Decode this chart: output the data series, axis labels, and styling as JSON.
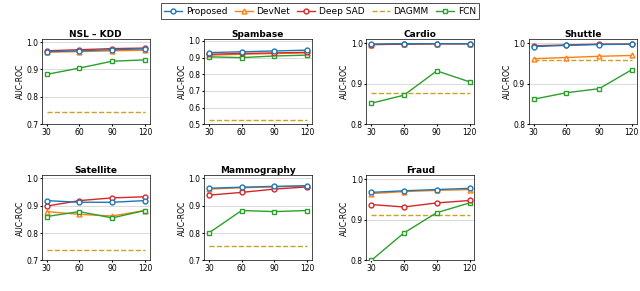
{
  "x": [
    30,
    60,
    90,
    120
  ],
  "datasets": {
    "NSL-KDD": {
      "Proposed": [
        0.965,
        0.968,
        0.972,
        0.975
      ],
      "DevNet": [
        0.963,
        0.965,
        0.968,
        0.97
      ],
      "Deep SAD": [
        0.968,
        0.972,
        0.976,
        0.978
      ],
      "DAGMM": [
        0.745,
        0.745,
        0.745,
        0.745
      ],
      "FCN": [
        0.882,
        0.905,
        0.93,
        0.935
      ]
    },
    "Spambase": {
      "Proposed": [
        0.93,
        0.935,
        0.94,
        0.945
      ],
      "DevNet": [
        0.915,
        0.92,
        0.925,
        0.928
      ],
      "Deep SAD": [
        0.92,
        0.925,
        0.928,
        0.932
      ],
      "DAGMM": [
        0.525,
        0.525,
        0.525,
        0.525
      ],
      "FCN": [
        0.905,
        0.9,
        0.91,
        0.915
      ]
    },
    "Cardio": {
      "Proposed": [
        0.998,
        0.999,
        0.999,
        0.999
      ],
      "DevNet": [
        0.997,
        0.998,
        0.999,
        0.999
      ],
      "Deep SAD": [
        0.997,
        0.998,
        0.999,
        0.999
      ],
      "DAGMM": [
        0.878,
        0.878,
        0.878,
        0.878
      ],
      "FCN": [
        0.852,
        0.872,
        0.932,
        0.905
      ]
    },
    "Shuttle": {
      "Proposed": [
        0.992,
        0.995,
        0.997,
        0.998
      ],
      "DevNet": [
        0.962,
        0.965,
        0.968,
        0.97
      ],
      "Deep SAD": [
        0.994,
        0.996,
        0.998,
        0.998
      ],
      "DAGMM": [
        0.958,
        0.958,
        0.958,
        0.958
      ],
      "FCN": [
        0.862,
        0.878,
        0.888,
        0.935
      ]
    },
    "Satellite": {
      "Proposed": [
        0.918,
        0.912,
        0.912,
        0.918
      ],
      "DevNet": [
        0.878,
        0.868,
        0.862,
        0.882
      ],
      "Deep SAD": [
        0.898,
        0.918,
        0.928,
        0.932
      ],
      "DAGMM": [
        0.738,
        0.738,
        0.738,
        0.738
      ],
      "FCN": [
        0.86,
        0.878,
        0.855,
        0.882
      ]
    },
    "Mammography": {
      "Proposed": [
        0.963,
        0.967,
        0.97,
        0.972
      ],
      "DevNet": [
        0.96,
        0.965,
        0.968,
        0.972
      ],
      "Deep SAD": [
        0.938,
        0.948,
        0.96,
        0.968
      ],
      "DAGMM": [
        0.752,
        0.752,
        0.752,
        0.752
      ],
      "FCN": [
        0.8,
        0.882,
        0.878,
        0.882
      ]
    },
    "Fraud": {
      "Proposed": [
        0.968,
        0.972,
        0.975,
        0.978
      ],
      "DevNet": [
        0.965,
        0.97,
        0.973,
        0.975
      ],
      "Deep SAD": [
        0.938,
        0.932,
        0.942,
        0.948
      ],
      "DAGMM": [
        0.912,
        0.912,
        0.912,
        0.912
      ],
      "FCN": [
        0.8,
        0.868,
        0.918,
        0.942
      ]
    }
  },
  "colors": {
    "Proposed": "#1f77b4",
    "DevNet": "#ff7f0e",
    "Deep SAD": "#d62728",
    "DAGMM": "#c9a227",
    "FCN": "#2ca02c"
  },
  "linestyles": {
    "Proposed": "-",
    "DevNet": "-",
    "Deep SAD": "-",
    "DAGMM": "--",
    "FCN": "-"
  },
  "ylims": {
    "NSL-KDD": [
      0.7,
      1.01
    ],
    "Spambase": [
      0.5,
      1.01
    ],
    "Cardio": [
      0.8,
      1.01
    ],
    "Shuttle": [
      0.8,
      1.01
    ],
    "Satellite": [
      0.7,
      1.01
    ],
    "Mammography": [
      0.7,
      1.01
    ],
    "Fraud": [
      0.8,
      1.01
    ]
  },
  "yticks": {
    "NSL-KDD": [
      0.7,
      0.8,
      0.9,
      1.0
    ],
    "Spambase": [
      0.5,
      0.6,
      0.7,
      0.8,
      0.9,
      1.0
    ],
    "Cardio": [
      0.8,
      0.9,
      1.0
    ],
    "Shuttle": [
      0.8,
      0.9,
      1.0
    ],
    "Satellite": [
      0.7,
      0.8,
      0.9,
      1.0
    ],
    "Mammography": [
      0.7,
      0.8,
      0.9,
      1.0
    ],
    "Fraud": [
      0.8,
      0.9,
      1.0
    ]
  },
  "subplot_order": [
    [
      "NSL-KDD",
      "Spambase",
      "Cardio",
      "Shuttle"
    ],
    [
      "Satellite",
      "Mammography",
      "Fraud",
      null
    ]
  ],
  "figsize": [
    6.4,
    2.91
  ],
  "dpi": 100
}
